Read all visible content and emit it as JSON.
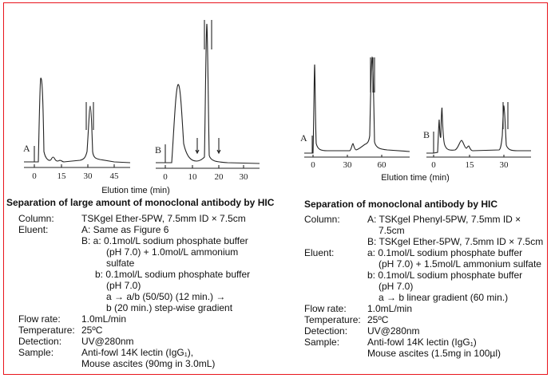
{
  "colors": {
    "border": "#e8141c",
    "text": "#111111"
  },
  "figure_left": {
    "panel_a": {
      "label": "A",
      "ticks": [
        "0",
        "15",
        "30",
        "45"
      ]
    },
    "panel_b": {
      "label": "B",
      "ticks": [
        "0",
        "10",
        "20",
        "30"
      ]
    },
    "xlabel": "Elution time (min)"
  },
  "figure_right": {
    "panel_a": {
      "label": "A",
      "ticks": [
        "0",
        "30",
        "60"
      ]
    },
    "panel_b": {
      "label": "B",
      "ticks": [
        "0",
        "15",
        "30"
      ]
    },
    "xlabel": "Elution time (min)"
  },
  "left": {
    "title": "Separation of large amount of monoclonal antibody by HIC",
    "rows": [
      {
        "label": "Column:",
        "value": "TSKgel Ether-5PW, 7.5mm ID × 7.5cm"
      },
      {
        "label": "Eluent:",
        "value": "A: Same as Figure 6"
      },
      {
        "label": "",
        "value": "B: a:  0.1mol/L sodium phosphate buffer"
      },
      {
        "label": "",
        "value": "(pH 7.0) + 1.0mol/L ammonium"
      },
      {
        "label": "",
        "value": "sulfate"
      },
      {
        "label": "",
        "value": "b:  0.1mol/L sodium phosphate buffer"
      },
      {
        "label": "",
        "value": "(pH 7.0)"
      },
      {
        "label": "",
        "value": "a → a/b (50/50) (12 min.) →"
      },
      {
        "label": "",
        "value": "b (20 min.) step-wise gradient"
      },
      {
        "label": "Flow rate:",
        "value": "1.0mL/min"
      },
      {
        "label": "Temperature:",
        "value": "25ºC"
      },
      {
        "label": "Detection:",
        "value": "UV@280nm"
      },
      {
        "label": "Sample:",
        "value": "Anti-fowl 14K lectin (IgG₁),"
      },
      {
        "label": "",
        "value": "Mouse ascites (90mg in 3.0mL)"
      }
    ]
  },
  "right": {
    "title": "Separation of monoclonal antibody by HIC",
    "rows": [
      {
        "label": "Column:",
        "value": "A: TSKgel Phenyl-5PW, 7.5mm ID ×"
      },
      {
        "label": "",
        "value": "7.5cm"
      },
      {
        "label": "",
        "value": "B: TSKgel Ether-5PW, 7.5mm ID × 7.5cm"
      },
      {
        "label": "Eluent:",
        "value": "a:  0.1mol/L sodium phosphate buffer"
      },
      {
        "label": "",
        "value": "(pH 7.0) + 1.5mol/L ammonium sulfate"
      },
      {
        "label": "",
        "value": "b:  0.1mol/L sodium phosphate buffer"
      },
      {
        "label": "",
        "value": "(pH 7.0)"
      },
      {
        "label": "",
        "value": "a → b linear gradient (60 min.)"
      },
      {
        "label": "Flow rate:",
        "value": "1.0mL/min"
      },
      {
        "label": "Temperature:",
        "value": "25ºC"
      },
      {
        "label": "Detection:",
        "value": "UV@280nm"
      },
      {
        "label": "Sample:",
        "value": "Anti-fowl 14K lectin (IgG₁)"
      },
      {
        "label": "",
        "value": "Mouse ascites (1.5mg in 100µl)"
      }
    ]
  }
}
